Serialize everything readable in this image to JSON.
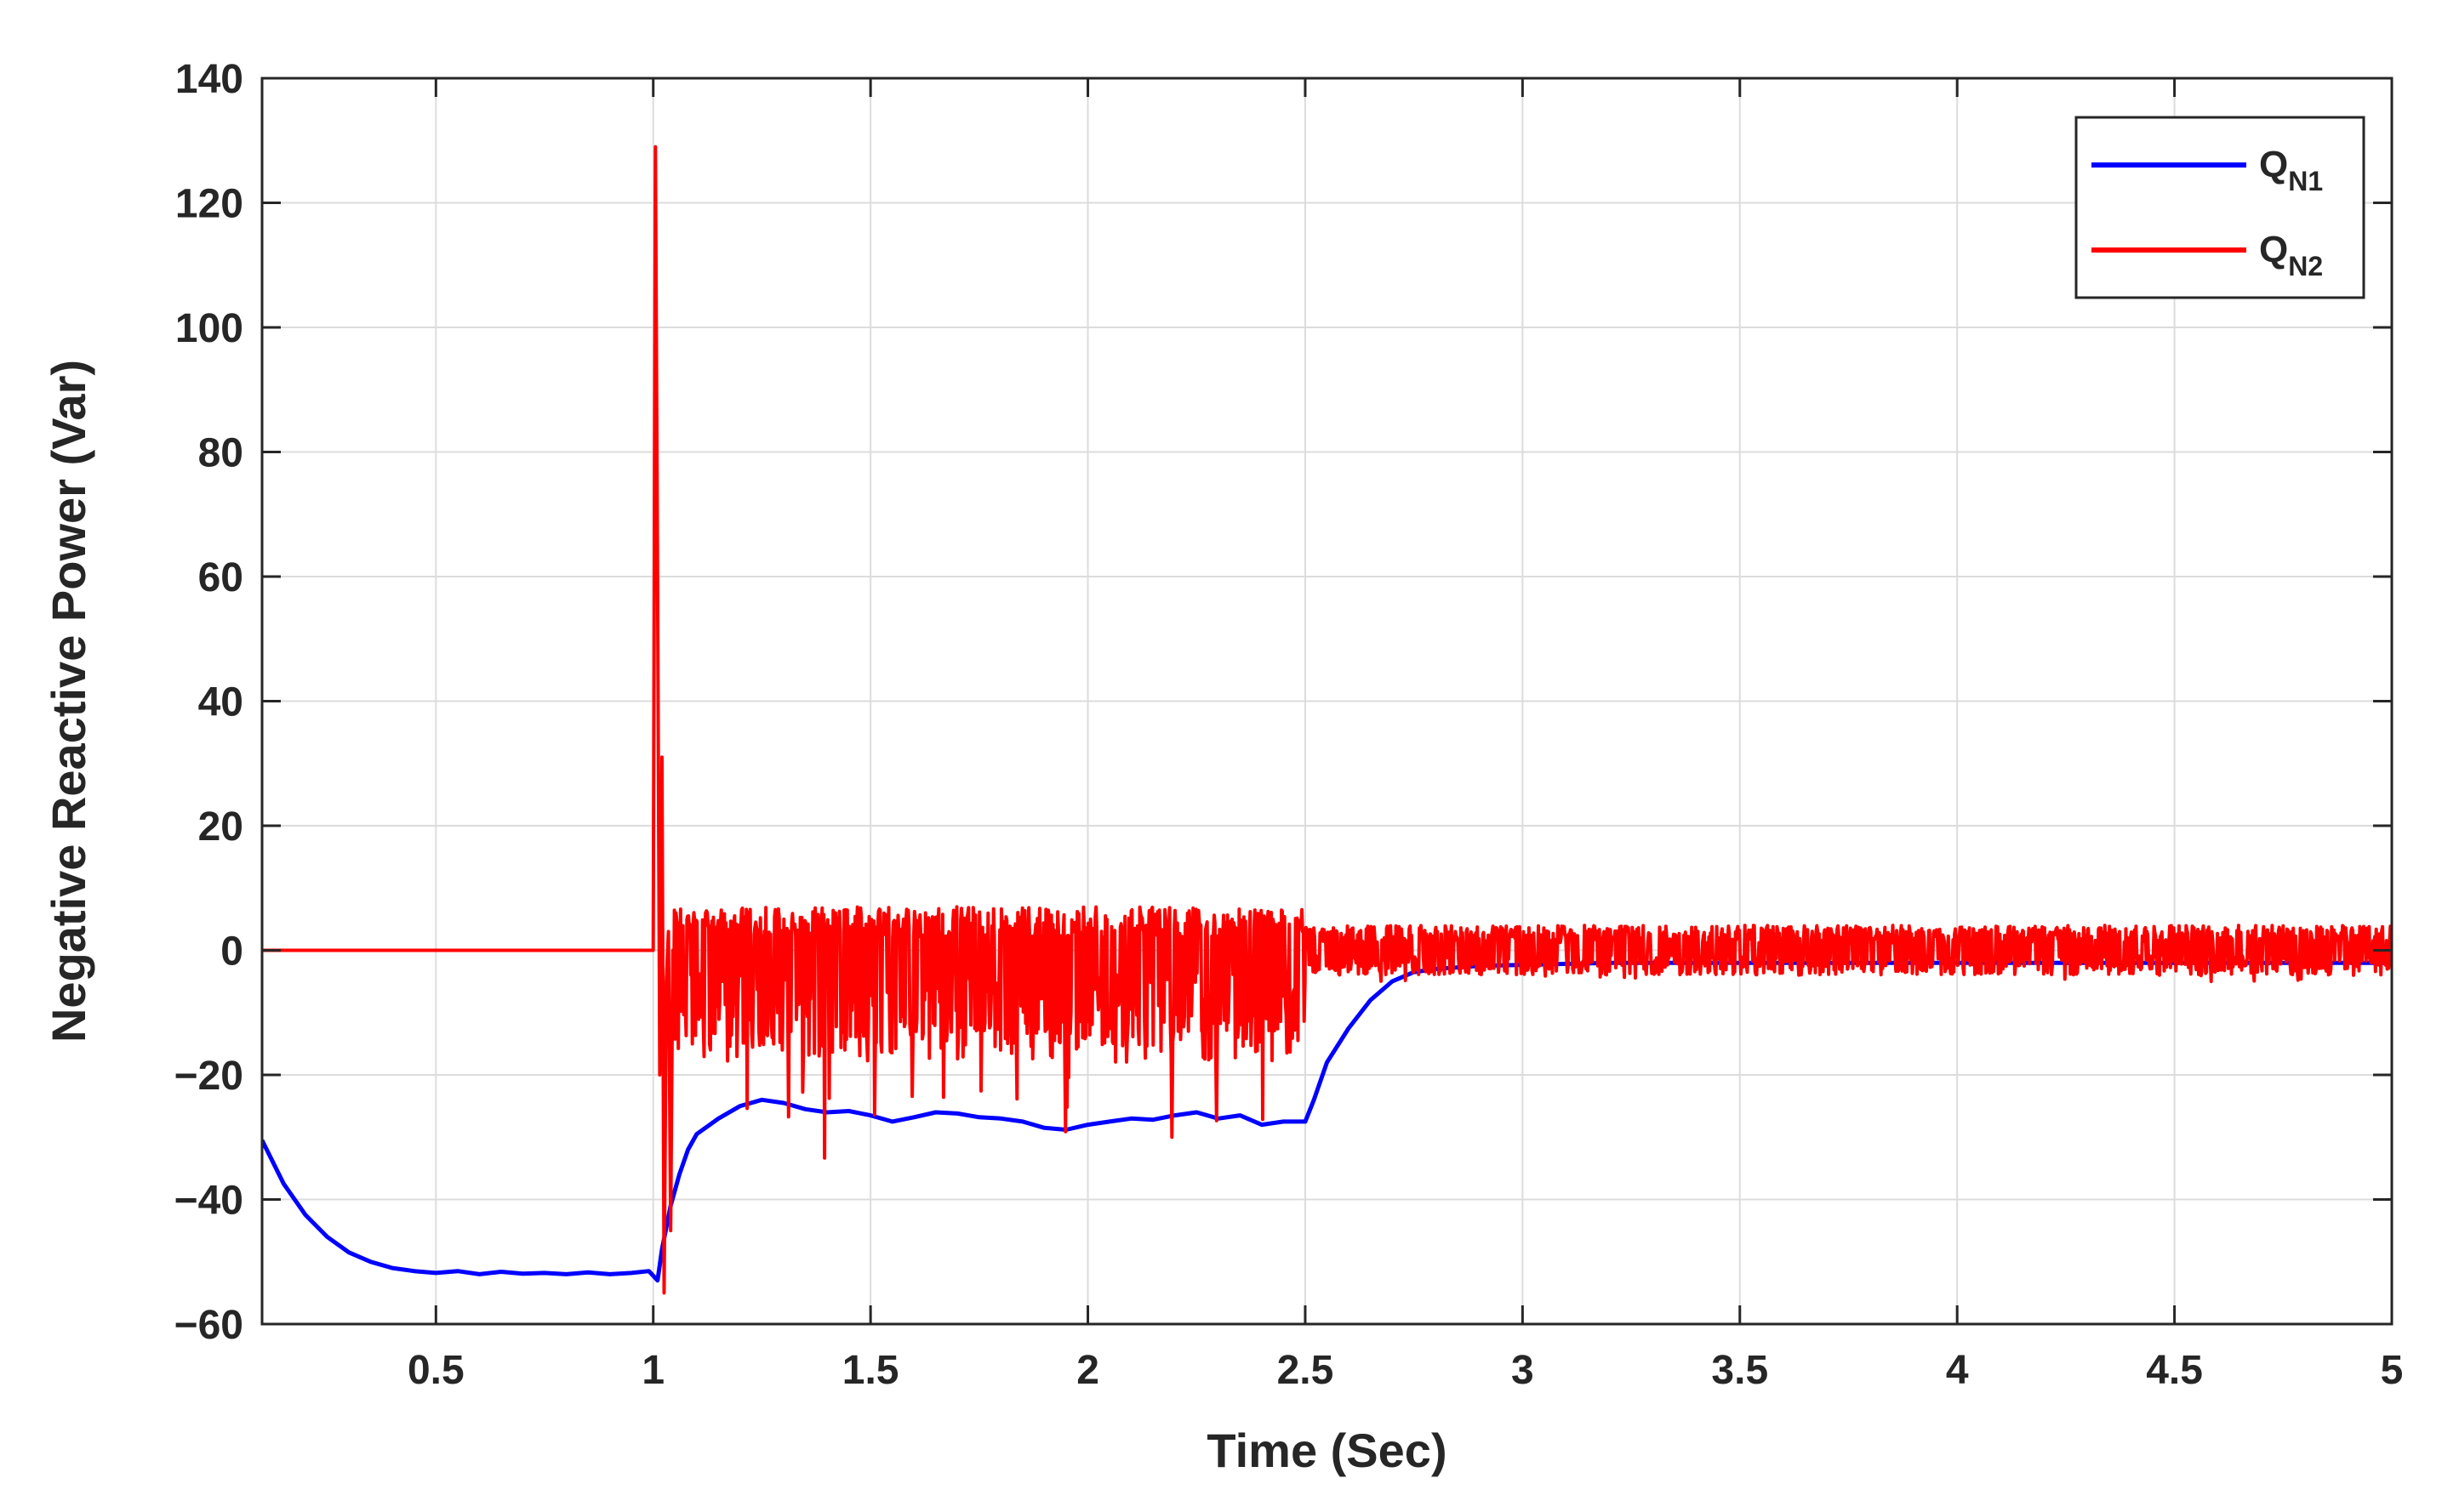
{
  "chart_data": {
    "type": "line",
    "title": "",
    "xlabel": "Time (Sec)",
    "ylabel": "Negative Reactive Power (Var)",
    "xlim": [
      0.1,
      5
    ],
    "ylim": [
      -60,
      140
    ],
    "x_ticks": [
      0.5,
      1,
      1.5,
      2,
      2.5,
      3,
      3.5,
      4,
      4.5,
      5
    ],
    "x_tick_labels": [
      "0.5",
      "1",
      "1.5",
      "2",
      "2.5",
      "3",
      "3.5",
      "4",
      "4.5",
      "5"
    ],
    "y_ticks": [
      -60,
      -40,
      -20,
      0,
      20,
      40,
      60,
      80,
      100,
      120,
      140
    ],
    "y_tick_labels": [
      "−60",
      "−40",
      "−20",
      "0",
      "20",
      "40",
      "60",
      "80",
      "100",
      "120",
      "140"
    ],
    "grid": true,
    "legend_position": "top-right",
    "legend": [
      {
        "main": "Q",
        "sub": "N1",
        "color": "#0000ff"
      },
      {
        "main": "Q",
        "sub": "N2",
        "color": "#ff0000"
      }
    ],
    "series": [
      {
        "name": "QN1",
        "color": "#0000ff",
        "points": [
          [
            0.1,
            -30.5
          ],
          [
            0.15,
            -37.5
          ],
          [
            0.2,
            -42.5
          ],
          [
            0.25,
            -46
          ],
          [
            0.3,
            -48.5
          ],
          [
            0.35,
            -50
          ],
          [
            0.4,
            -51
          ],
          [
            0.45,
            -51.5
          ],
          [
            0.5,
            -51.8
          ],
          [
            0.55,
            -51.5
          ],
          [
            0.6,
            -52
          ],
          [
            0.65,
            -51.6
          ],
          [
            0.7,
            -51.9
          ],
          [
            0.75,
            -51.8
          ],
          [
            0.8,
            -52
          ],
          [
            0.85,
            -51.7
          ],
          [
            0.9,
            -52
          ],
          [
            0.95,
            -51.8
          ],
          [
            0.99,
            -51.5
          ],
          [
            1.01,
            -53
          ],
          [
            1.02,
            -48
          ],
          [
            1.04,
            -41
          ],
          [
            1.06,
            -36
          ],
          [
            1.08,
            -32
          ],
          [
            1.1,
            -29.5
          ],
          [
            1.15,
            -27
          ],
          [
            1.2,
            -25
          ],
          [
            1.25,
            -24
          ],
          [
            1.3,
            -24.5
          ],
          [
            1.35,
            -25.5
          ],
          [
            1.4,
            -26
          ],
          [
            1.45,
            -25.8
          ],
          [
            1.5,
            -26.5
          ],
          [
            1.55,
            -27.5
          ],
          [
            1.6,
            -26.8
          ],
          [
            1.65,
            -26
          ],
          [
            1.7,
            -26.2
          ],
          [
            1.75,
            -26.8
          ],
          [
            1.8,
            -27
          ],
          [
            1.85,
            -27.5
          ],
          [
            1.9,
            -28.5
          ],
          [
            1.95,
            -28.8
          ],
          [
            2.0,
            -28
          ],
          [
            2.05,
            -27.5
          ],
          [
            2.1,
            -27
          ],
          [
            2.15,
            -27.2
          ],
          [
            2.2,
            -26.5
          ],
          [
            2.25,
            -26
          ],
          [
            2.3,
            -27
          ],
          [
            2.35,
            -26.5
          ],
          [
            2.4,
            -28
          ],
          [
            2.45,
            -27.5
          ],
          [
            2.5,
            -27.5
          ],
          [
            2.52,
            -24
          ],
          [
            2.55,
            -18
          ],
          [
            2.6,
            -12.5
          ],
          [
            2.65,
            -8
          ],
          [
            2.7,
            -5
          ],
          [
            2.75,
            -3.5
          ],
          [
            2.8,
            -3
          ],
          [
            2.9,
            -2.5
          ],
          [
            3.2,
            -2
          ],
          [
            3.6,
            -2
          ],
          [
            4.0,
            -2
          ],
          [
            4.5,
            -2
          ],
          [
            5.0,
            -2
          ]
        ]
      },
      {
        "name": "QN2",
        "color": "#ff0000",
        "segments": [
          {
            "kind": "flat",
            "x_start": 0.1,
            "x_end": 1.0,
            "value": 0
          },
          {
            "kind": "spike",
            "points": [
              [
                1.0,
                0
              ],
              [
                1.005,
                129
              ],
              [
                1.01,
                60
              ],
              [
                1.015,
                -20
              ],
              [
                1.02,
                31
              ],
              [
                1.025,
                -55
              ],
              [
                1.03,
                -5
              ],
              [
                1.035,
                3
              ],
              [
                1.04,
                -45
              ],
              [
                1.045,
                0
              ]
            ]
          },
          {
            "kind": "noise",
            "x_start": 1.045,
            "x_end": 2.5,
            "upper": 7,
            "lower_typical": -18,
            "lower_min": -35
          },
          {
            "kind": "noise",
            "x_start": 2.5,
            "x_end": 5.0,
            "upper": 4,
            "lower_typical": -4,
            "lower_min": -5
          }
        ]
      }
    ]
  }
}
